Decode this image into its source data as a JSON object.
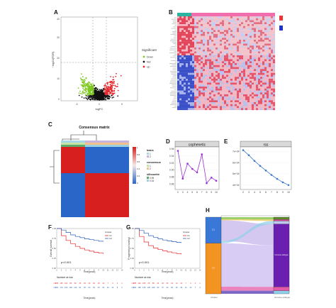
{
  "colors": {
    "down": "#7ec820",
    "not": "#111111",
    "up": "#e8262b",
    "purple": "#9b30d6",
    "blue": "#3d7ac4",
    "km_low": "#2a5fb8",
    "km_high": "#e8262b",
    "consensus_red": "#d81f1f",
    "consensus_blue": "#2a66c8",
    "sankey_blue": "#3a78d8",
    "sankey_orange": "#f29322",
    "sankey_purple": "#6a1fb0"
  },
  "panel_labels": {
    "a": "A",
    "b": "B",
    "c": "C",
    "d": "D",
    "e": "E",
    "f": "F",
    "g": "G",
    "h": "H"
  },
  "panels": {
    "volcano": {
      "xlabel": "logFC",
      "ylabel": "−log10(FDR)",
      "legend_title": "Significant",
      "legend_items": [
        "Down",
        "Not",
        "Up"
      ],
      "x_ticks": [
        "-5",
        "0",
        "5"
      ],
      "y_ticks": [
        "0",
        "10",
        "20",
        "30",
        "40"
      ]
    },
    "consensus": {
      "title": "Consensus matrix"
    },
    "sankey": {
      "left_axis": "Cluster",
      "right_axis": "Immune subtype"
    },
    "km_f": {
      "ylabel": "Overall survival",
      "xlabel": "Time(years)",
      "pvalue": "p<0.001",
      "risk_title": "Number at risk",
      "xlabel_bottom": "Time(years)"
    },
    "km_g": {
      "ylabel": "Progression survival",
      "xlabel": "Time(years)",
      "pvalue": "p<0.001",
      "risk_title": "Number at risk",
      "xlabel_bottom": "Time(years)"
    }
  },
  "chart_data": [
    {
      "id": "cophenetic",
      "type": "line",
      "title": "cophenetic",
      "x": [
        2,
        3,
        4,
        5,
        6,
        7,
        8,
        9,
        10
      ],
      "y": [
        0.955,
        0.875,
        0.918,
        0.903,
        0.893,
        0.945,
        0.862,
        0.878,
        0.869
      ],
      "ylim": [
        0.85,
        0.96
      ],
      "y_ticks": [
        0.86,
        0.88,
        0.9,
        0.92,
        0.94,
        0.96
      ],
      "y_tick_labels": [
        "0.86",
        "0.88",
        "0.90",
        "0.92",
        "0.94",
        "0.96"
      ],
      "x_ticks": [
        2,
        3,
        4,
        5,
        6,
        7,
        8,
        9,
        10
      ]
    },
    {
      "id": "rss",
      "type": "line",
      "title": "rss",
      "x": [
        2,
        3,
        4,
        5,
        6,
        7,
        8,
        9,
        10
      ],
      "y": [
        71000,
        66500,
        61500,
        57000,
        53000,
        49000,
        45500,
        42500,
        40000
      ],
      "ylim": [
        38000,
        72000
      ],
      "y_ticks": [
        40000,
        50000,
        60000,
        70000
      ],
      "y_tick_labels": [
        "4e+04",
        "5e+04",
        "6e+04",
        "7e+04"
      ],
      "x_ticks": [
        2,
        3,
        4,
        5,
        6,
        7,
        8,
        9,
        10
      ]
    },
    {
      "id": "consensus_legend",
      "type": "table",
      "legend": [
        {
          "title": "basis",
          "items": [
            "1",
            "2"
          ]
        },
        {
          "title": "consensus",
          "items": [
            "1",
            "2"
          ]
        },
        {
          "title": "silhouette",
          "items": [
            "0.95",
            "0.34"
          ]
        }
      ],
      "color_scale": [
        "1",
        "0.8",
        "0.6",
        "0.4",
        "0.2",
        "0"
      ]
    },
    {
      "id": "km_overall",
      "type": "line",
      "series": [
        {
          "name": "C1",
          "x": [
            0,
            1,
            2,
            3,
            4,
            5,
            6,
            7,
            8,
            9,
            10
          ],
          "y": [
            1.0,
            0.82,
            0.7,
            0.62,
            0.55,
            0.5,
            0.46,
            0.43,
            0.4,
            0.38,
            0.36
          ]
        },
        {
          "name": "C2",
          "x": [
            0,
            1,
            2,
            3,
            4,
            5,
            6,
            7,
            8,
            9,
            10
          ],
          "y": [
            1.0,
            0.96,
            0.9,
            0.84,
            0.8,
            0.77,
            0.74,
            0.72,
            0.7,
            0.68,
            0.67
          ]
        }
      ],
      "legend_title": "Cluster",
      "ylim": [
        0,
        1
      ],
      "y_ticks": [
        "0.00",
        "0.25",
        "0.50",
        "0.75",
        "1.00"
      ],
      "x_ticks": [
        "0",
        "1",
        "2",
        "3",
        "4",
        "5",
        "6",
        "7",
        "8",
        "9",
        "10",
        "11",
        "12",
        "13",
        "14"
      ],
      "risk_table": {
        "groups": [
          "C1",
          "C2"
        ],
        "rows": [
          [
            "185",
            "145",
            "110",
            "80",
            "60",
            "45",
            "34",
            "26",
            "20",
            "15",
            "10",
            "7",
            "4",
            "2",
            "1"
          ],
          [
            "182",
            "170",
            "150",
            "130",
            "110",
            "92",
            "78",
            "64",
            "52",
            "40",
            "30",
            "22",
            "14",
            "8",
            "3"
          ]
        ]
      }
    },
    {
      "id": "km_progression",
      "type": "line",
      "series": [
        {
          "name": "C1",
          "x": [
            0,
            1,
            2,
            3,
            4,
            5,
            6,
            7,
            8,
            9,
            10
          ],
          "y": [
            1.0,
            0.8,
            0.66,
            0.57,
            0.51,
            0.47,
            0.44,
            0.41,
            0.39,
            0.37,
            0.35
          ]
        },
        {
          "name": "C2",
          "x": [
            0,
            1,
            2,
            3,
            4,
            5,
            6,
            7,
            8,
            9,
            10
          ],
          "y": [
            1.0,
            0.95,
            0.88,
            0.82,
            0.78,
            0.74,
            0.71,
            0.69,
            0.67,
            0.65,
            0.64
          ]
        }
      ],
      "legend_title": "Cluster",
      "ylim": [
        0,
        1
      ],
      "y_ticks": [
        "0.00",
        "0.25",
        "0.50",
        "0.75",
        "1.00"
      ],
      "x_ticks": [
        "0",
        "1",
        "2",
        "3",
        "4",
        "5",
        "6",
        "7",
        "8",
        "9",
        "10",
        "11",
        "12",
        "13",
        "14"
      ],
      "risk_table": {
        "groups": [
          "C1",
          "C2"
        ],
        "rows": [
          [
            "185",
            "140",
            "105",
            "78",
            "58",
            "44",
            "33",
            "25",
            "19",
            "14",
            "10",
            "7",
            "4",
            "2",
            "1"
          ],
          [
            "182",
            "168",
            "148",
            "128",
            "108",
            "90",
            "76",
            "62",
            "50",
            "39",
            "29",
            "21",
            "13",
            "7",
            "3"
          ]
        ]
      }
    },
    {
      "id": "sankey",
      "type": "table",
      "left_nodes": [
        {
          "name": "C1",
          "fraction": 0.34
        },
        {
          "name": "C2",
          "fraction": 0.66
        }
      ],
      "right_nodes": [
        {
          "name": "",
          "fraction": 0.03
        },
        {
          "name": "",
          "fraction": 0.02
        },
        {
          "name": "",
          "fraction": 0.04
        },
        {
          "name": "Immune subtype",
          "fraction": 0.82
        },
        {
          "name": "",
          "fraction": 0.05
        },
        {
          "name": "",
          "fraction": 0.04
        }
      ]
    }
  ]
}
